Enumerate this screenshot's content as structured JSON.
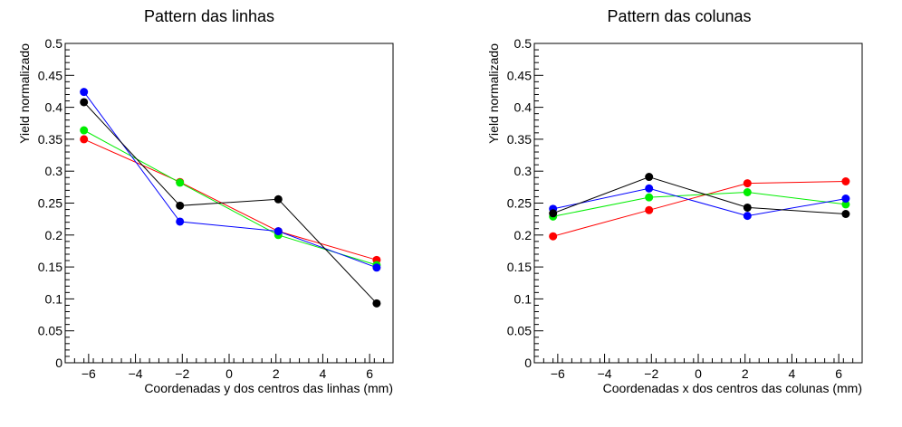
{
  "chart_data": [
    {
      "type": "line",
      "title": "Pattern das linhas",
      "xlabel": "Coordenadas y dos centros das linhas (mm)",
      "ylabel": "Yield normalizado",
      "xlim": [
        -7,
        7
      ],
      "ylim": [
        0,
        0.5
      ],
      "x_ticks": [
        -6,
        -4,
        -2,
        0,
        2,
        4,
        6
      ],
      "x_tick_labels": [
        "−6",
        "−4",
        "−2",
        "0",
        "2",
        "4",
        "6"
      ],
      "y_ticks": [
        0,
        0.05,
        0.1,
        0.15,
        0.2,
        0.25,
        0.3,
        0.35,
        0.4,
        0.45,
        0.5
      ],
      "y_tick_labels": [
        "0",
        "0.05",
        "0.1",
        "0.15",
        "0.2",
        "0.25",
        "0.3",
        "0.35",
        "0.4",
        "0.45",
        "0.5"
      ],
      "grid": false,
      "legend": false,
      "series": [
        {
          "color": "#ff0000",
          "x": [
            -6.2,
            -2.1,
            2.1,
            6.3
          ],
          "y": [
            0.35,
            0.283,
            0.206,
            0.161
          ]
        },
        {
          "color": "#00ee00",
          "x": [
            -6.2,
            -2.1,
            2.1,
            6.3
          ],
          "y": [
            0.364,
            0.282,
            0.2,
            0.153
          ]
        },
        {
          "color": "#0000ff",
          "x": [
            -6.2,
            -2.1,
            2.1,
            6.3
          ],
          "y": [
            0.424,
            0.221,
            0.206,
            0.149
          ]
        },
        {
          "color": "#000000",
          "x": [
            -6.2,
            -2.1,
            2.1,
            6.3
          ],
          "y": [
            0.408,
            0.246,
            0.256,
            0.093
          ]
        }
      ]
    },
    {
      "type": "line",
      "title": "Pattern das colunas",
      "xlabel": "Coordenadas x dos centros das colunas (mm)",
      "ylabel": "Yield normalizado",
      "xlim": [
        -7,
        7
      ],
      "ylim": [
        0,
        0.5
      ],
      "x_ticks": [
        -6,
        -4,
        -2,
        0,
        2,
        4,
        6
      ],
      "x_tick_labels": [
        "−6",
        "−4",
        "−2",
        "0",
        "2",
        "4",
        "6"
      ],
      "y_ticks": [
        0,
        0.05,
        0.1,
        0.15,
        0.2,
        0.25,
        0.3,
        0.35,
        0.4,
        0.45,
        0.5
      ],
      "y_tick_labels": [
        "0",
        "0.05",
        "0.1",
        "0.15",
        "0.2",
        "0.25",
        "0.3",
        "0.35",
        "0.4",
        "0.45",
        "0.5"
      ],
      "grid": false,
      "legend": false,
      "series": [
        {
          "color": "#ff0000",
          "x": [
            -6.2,
            -2.1,
            2.1,
            6.3
          ],
          "y": [
            0.198,
            0.239,
            0.281,
            0.284
          ]
        },
        {
          "color": "#00ee00",
          "x": [
            -6.2,
            -2.1,
            2.1,
            6.3
          ],
          "y": [
            0.229,
            0.259,
            0.267,
            0.248
          ]
        },
        {
          "color": "#0000ff",
          "x": [
            -6.2,
            -2.1,
            2.1,
            6.3
          ],
          "y": [
            0.241,
            0.273,
            0.23,
            0.257
          ]
        },
        {
          "color": "#000000",
          "x": [
            -6.2,
            -2.1,
            2.1,
            6.3
          ],
          "y": [
            0.234,
            0.291,
            0.243,
            0.233
          ]
        }
      ]
    }
  ]
}
